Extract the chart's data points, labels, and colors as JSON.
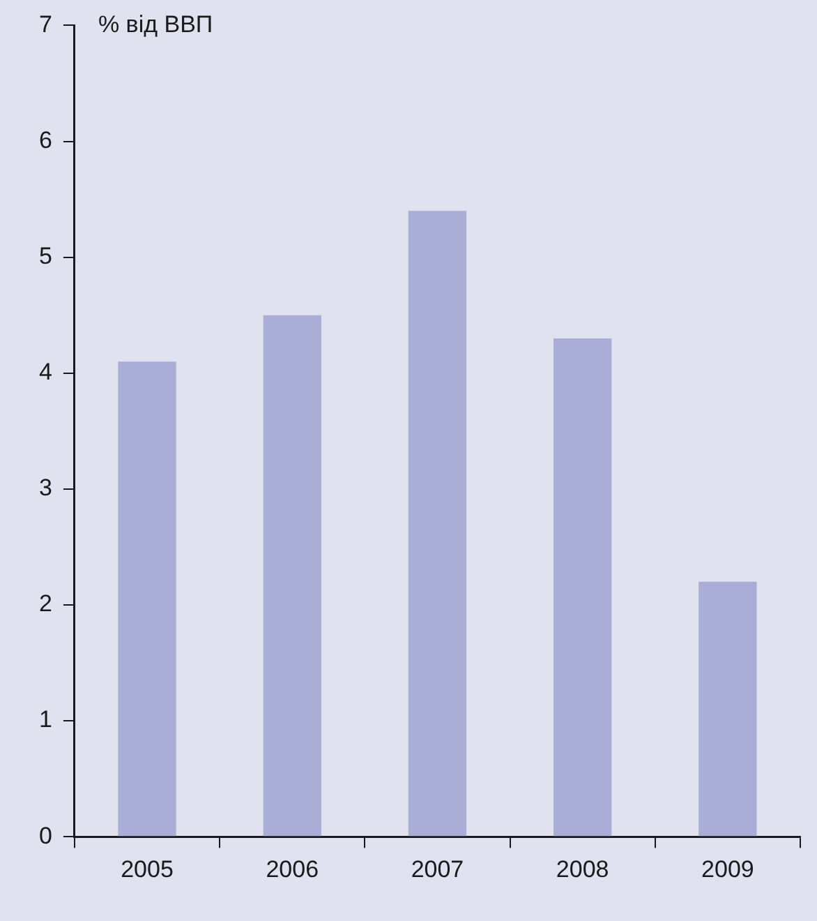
{
  "chart_data": {
    "type": "bar",
    "ylabel": "% від ВВП",
    "categories": [
      "2005",
      "2006",
      "2007",
      "2008",
      "2009"
    ],
    "values": [
      4.1,
      4.5,
      5.4,
      4.3,
      2.2
    ],
    "color": "#aaadd6",
    "ylim": [
      0,
      7
    ],
    "yticks": [
      0,
      1,
      2,
      3,
      4,
      5,
      6,
      7
    ],
    "grid": false,
    "legend": false
  }
}
